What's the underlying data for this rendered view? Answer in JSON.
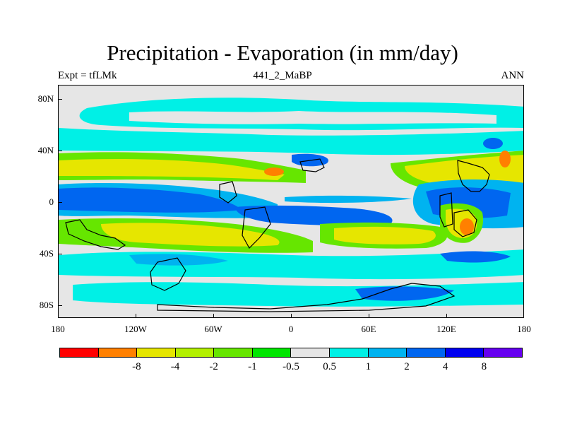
{
  "title": "Precipitation - Evaporation (in mm/day)",
  "subtitle_left": "Expt = tfLMk",
  "subtitle_center": "441_2_MaBP",
  "subtitle_right": "ANN",
  "lat_labels": [
    "80N",
    "40N",
    "0",
    "40S",
    "80S"
  ],
  "lon_labels": [
    "180",
    "120W",
    "60W",
    "0",
    "60E",
    "120E",
    "180"
  ],
  "colorbar": {
    "colors": [
      "#ff0000",
      "#ff8000",
      "#e6e600",
      "#b3f000",
      "#66e600",
      "#00e600",
      "#e6e6e6",
      "#00f0e6",
      "#00b3f0",
      "#0066f0",
      "#0000f0",
      "#6600f0"
    ],
    "labels": [
      "-8",
      "-4",
      "-2",
      "-1",
      "-0.5",
      "0.5",
      "1",
      "2",
      "4",
      "8"
    ]
  },
  "colors": {
    "background_land": "#e6e6e6",
    "coastline": "#000000"
  }
}
